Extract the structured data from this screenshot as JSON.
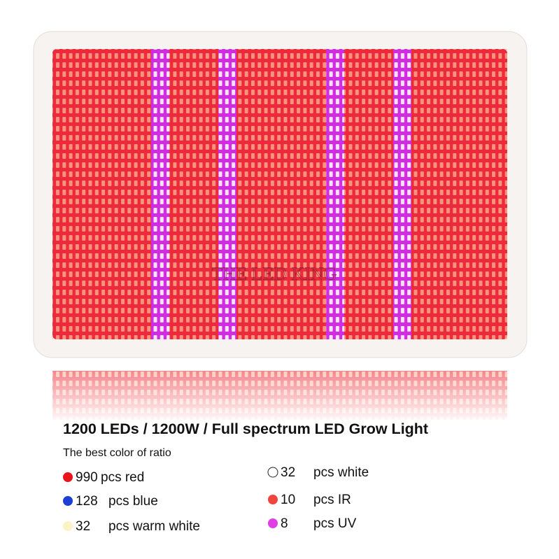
{
  "watermark": "THE LED KING",
  "headline": "1200 LEDs / 1200W / Full spectrum LED Grow Light",
  "subtitle": "The best color of ratio",
  "items": [
    {
      "count": 990,
      "label": "pcs red",
      "color": "#e8151b"
    },
    {
      "count": 128,
      "label": "pcs blue",
      "color": "#1d3fd6"
    },
    {
      "count": 32,
      "label": "pcs warm white",
      "color": "#fbf3c6"
    },
    {
      "count": 32,
      "label": "pcs white",
      "color": "#ffffff"
    },
    {
      "count": 10,
      "label": "pcs IR",
      "color": "#f0453f"
    },
    {
      "count": 8,
      "label": "pcs UV",
      "color": "#e23ee6"
    }
  ]
}
